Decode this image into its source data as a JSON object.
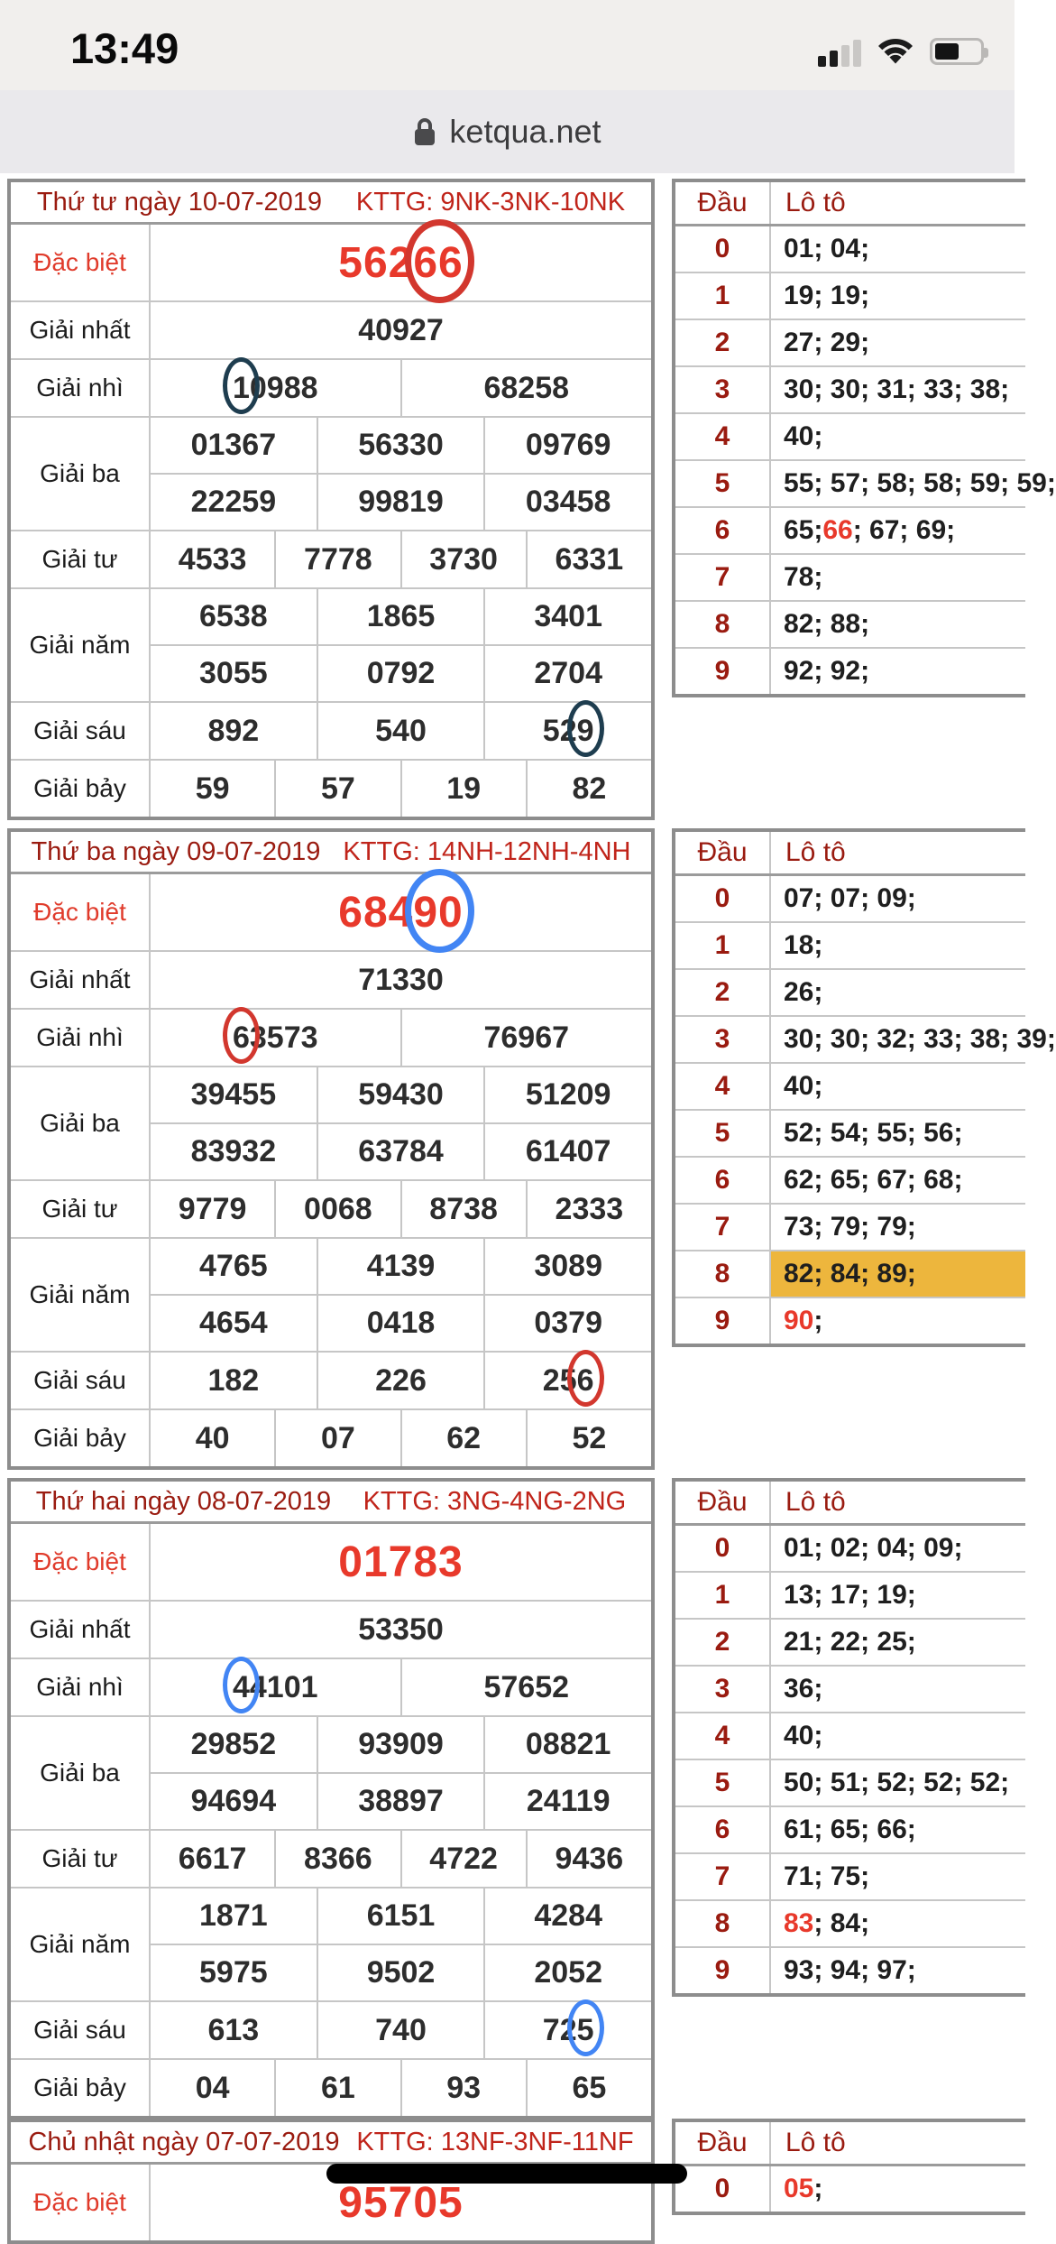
{
  "status_bar": {
    "time": "13:49",
    "icons": [
      "cellular-signal-icon",
      "wifi-icon",
      "battery-icon"
    ]
  },
  "url_bar": {
    "domain": "ketqua.net",
    "icon": "lock-icon"
  },
  "colors": {
    "red_text": "#e8392b",
    "red": "#d2372e",
    "navy": "#1e3d4f",
    "blue": "#4285f4",
    "loto_highlight": "#edb63d",
    "header_date": "#9a1b10",
    "header_kttg": "#c0241a"
  },
  "results": [
    {
      "date": "Thứ tư ngày 10-07-2019",
      "kttg": "KTTG: 9NK-3NK-10NK",
      "prizes": [
        {
          "label": "Đặc biệt",
          "special": true,
          "rows": [
            [
              [
                {
                  "t": "562"
                },
                {
                  "t": "66",
                  "circle": "red",
                  "big": true
                }
              ]
            ]
          ]
        },
        {
          "label": "Giải nhất",
          "rows": [
            [
              "40927"
            ]
          ]
        },
        {
          "label": "Giải nhì",
          "rows": [
            [
              [
                {
                  "t": "1",
                  "circle": "navy"
                },
                {
                  "t": "0988"
                }
              ],
              "68258"
            ]
          ]
        },
        {
          "label": "Giải ba",
          "rows": [
            [
              "01367",
              "56330",
              "09769"
            ],
            [
              "22259",
              "99819",
              "03458"
            ]
          ]
        },
        {
          "label": "Giải tư",
          "rows": [
            [
              "4533",
              "7778",
              "3730",
              "6331"
            ]
          ]
        },
        {
          "label": "Giải năm",
          "rows": [
            [
              "6538",
              "1865",
              "3401"
            ],
            [
              "3055",
              "0792",
              "2704"
            ]
          ]
        },
        {
          "label": "Giải sáu",
          "rows": [
            [
              "892",
              "540",
              [
                {
                  "t": "52"
                },
                {
                  "t": "9",
                  "circle": "navy"
                }
              ]
            ]
          ]
        },
        {
          "label": "Giải bảy",
          "rows": [
            [
              "59",
              "57",
              "19",
              "82"
            ]
          ]
        }
      ],
      "loto": {
        "head_digit": "Đầu",
        "head_values": "Lô tô",
        "rows": [
          {
            "d": "0",
            "v": "01; 04;"
          },
          {
            "d": "1",
            "v": "19; 19;"
          },
          {
            "d": "2",
            "v": "27; 29;"
          },
          {
            "d": "3",
            "v": "30; 30; 31; 33; 38;"
          },
          {
            "d": "4",
            "v": "40;"
          },
          {
            "d": "5",
            "v": "55; 57; 58; 58; 59; 59;"
          },
          {
            "d": "6",
            "v": [
              {
                "t": "65; "
              },
              {
                "t": "66",
                "red": true
              },
              {
                "t": "; 67; 69;"
              }
            ]
          },
          {
            "d": "7",
            "v": "78;"
          },
          {
            "d": "8",
            "v": "82; 88;"
          },
          {
            "d": "9",
            "v": "92; 92;"
          }
        ]
      }
    },
    {
      "date": "Thứ ba ngày 09-07-2019",
      "kttg": "KTTG: 14NH-12NH-4NH",
      "prizes": [
        {
          "label": "Đặc biệt",
          "special": true,
          "rows": [
            [
              [
                {
                  "t": "684"
                },
                {
                  "t": "90",
                  "circle": "blue",
                  "big": true
                }
              ]
            ]
          ]
        },
        {
          "label": "Giải nhất",
          "rows": [
            [
              "71330"
            ]
          ]
        },
        {
          "label": "Giải nhì",
          "rows": [
            [
              [
                {
                  "t": "6",
                  "circle": "red"
                },
                {
                  "t": "3573"
                }
              ],
              "76967"
            ]
          ]
        },
        {
          "label": "Giải ba",
          "rows": [
            [
              "39455",
              "59430",
              "51209"
            ],
            [
              "83932",
              "63784",
              "61407"
            ]
          ]
        },
        {
          "label": "Giải tư",
          "rows": [
            [
              "9779",
              "0068",
              "8738",
              "2333"
            ]
          ]
        },
        {
          "label": "Giải năm",
          "rows": [
            [
              "4765",
              "4139",
              "3089"
            ],
            [
              "4654",
              "0418",
              "0379"
            ]
          ]
        },
        {
          "label": "Giải sáu",
          "rows": [
            [
              "182",
              "226",
              [
                {
                  "t": "25"
                },
                {
                  "t": "6",
                  "circle": "red"
                }
              ]
            ]
          ]
        },
        {
          "label": "Giải bảy",
          "rows": [
            [
              "40",
              "07",
              "62",
              "52"
            ]
          ]
        }
      ],
      "loto": {
        "head_digit": "Đầu",
        "head_values": "Lô tô",
        "rows": [
          {
            "d": "0",
            "v": "07; 07; 09;"
          },
          {
            "d": "1",
            "v": "18;"
          },
          {
            "d": "2",
            "v": "26;"
          },
          {
            "d": "3",
            "v": "30; 30; 32; 33; 38; 39;"
          },
          {
            "d": "4",
            "v": "40;"
          },
          {
            "d": "5",
            "v": "52; 54; 55; 56;"
          },
          {
            "d": "6",
            "v": "62; 65; 67; 68;"
          },
          {
            "d": "7",
            "v": "73; 79; 79;"
          },
          {
            "d": "8",
            "v": "82; 84; 89;",
            "highlight": true
          },
          {
            "d": "9",
            "v": [
              {
                "t": "90",
                "red": true
              },
              {
                "t": ";"
              }
            ]
          }
        ]
      }
    },
    {
      "date": "Thứ hai ngày 08-07-2019",
      "kttg": "KTTG: 3NG-4NG-2NG",
      "prizes": [
        {
          "label": "Đặc biệt",
          "special": true,
          "rows": [
            [
              "01783"
            ]
          ]
        },
        {
          "label": "Giải nhất",
          "rows": [
            [
              "53350"
            ]
          ]
        },
        {
          "label": "Giải nhì",
          "rows": [
            [
              [
                {
                  "t": "4",
                  "circle": "blue"
                },
                {
                  "t": "4101"
                }
              ],
              "57652"
            ]
          ]
        },
        {
          "label": "Giải ba",
          "rows": [
            [
              "29852",
              "93909",
              "08821"
            ],
            [
              "94694",
              "38897",
              "24119"
            ]
          ]
        },
        {
          "label": "Giải tư",
          "rows": [
            [
              "6617",
              "8366",
              "4722",
              "9436"
            ]
          ]
        },
        {
          "label": "Giải năm",
          "rows": [
            [
              "1871",
              "6151",
              "4284"
            ],
            [
              "5975",
              "9502",
              "2052"
            ]
          ]
        },
        {
          "label": "Giải sáu",
          "rows": [
            [
              "613",
              "740",
              [
                {
                  "t": "72"
                },
                {
                  "t": "5",
                  "circle": "blue"
                }
              ]
            ]
          ]
        },
        {
          "label": "Giải bảy",
          "rows": [
            [
              "04",
              "61",
              "93",
              "65"
            ]
          ]
        }
      ],
      "loto": {
        "head_digit": "Đầu",
        "head_values": "Lô tô",
        "rows": [
          {
            "d": "0",
            "v": "01; 02; 04; 09;"
          },
          {
            "d": "1",
            "v": "13; 17; 19;"
          },
          {
            "d": "2",
            "v": "21; 22; 25;"
          },
          {
            "d": "3",
            "v": "36;"
          },
          {
            "d": "4",
            "v": "40;"
          },
          {
            "d": "5",
            "v": "50; 51; 52; 52; 52;"
          },
          {
            "d": "6",
            "v": "61; 65; 66;"
          },
          {
            "d": "7",
            "v": "71; 75;"
          },
          {
            "d": "8",
            "v": [
              {
                "t": "83",
                "red": true
              },
              {
                "t": "; 84;"
              }
            ]
          },
          {
            "d": "9",
            "v": "93; 94; 97;"
          }
        ]
      }
    },
    {
      "date": "Chủ nhật ngày 07-07-2019",
      "kttg": "KTTG: 13NF-3NF-11NF",
      "prizes": [
        {
          "label": "Đặc biệt",
          "special": true,
          "rows": [
            [
              "95705"
            ]
          ]
        }
      ],
      "loto": {
        "head_digit": "Đầu",
        "head_values": "Lô tô",
        "rows": [
          {
            "d": "0",
            "v": [
              {
                "t": "05",
                "red": true
              },
              {
                "t": ";"
              }
            ]
          }
        ]
      }
    }
  ]
}
